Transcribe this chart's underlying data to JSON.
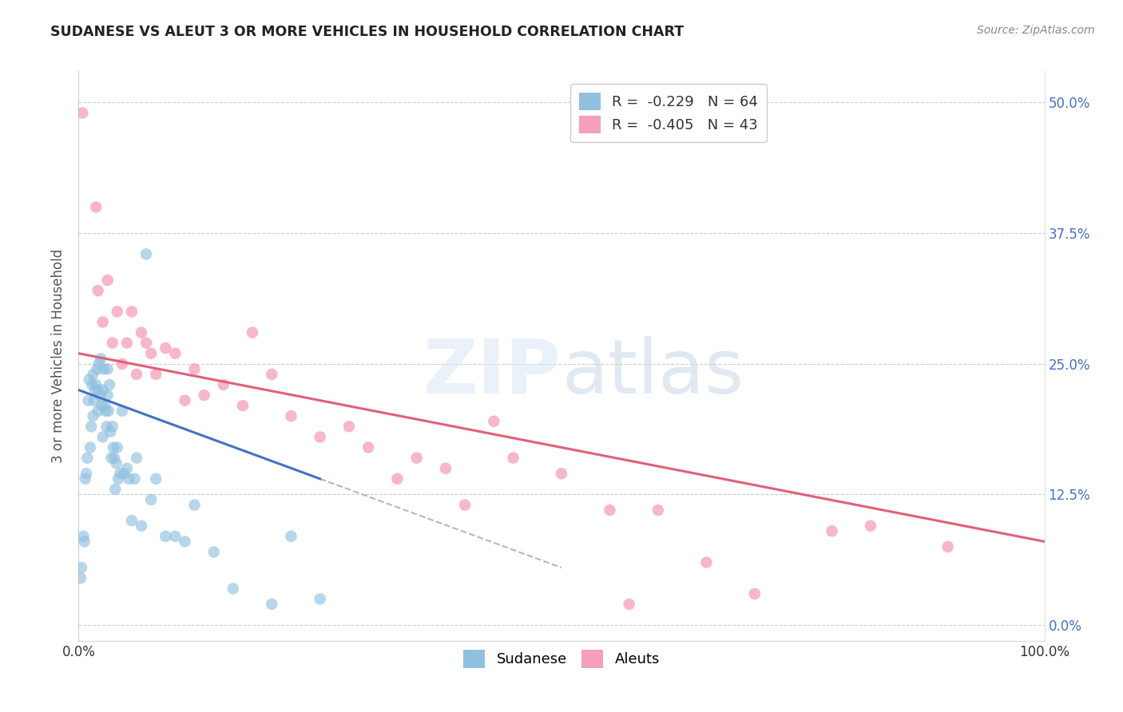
{
  "title": "SUDANESE VS ALEUT 3 OR MORE VEHICLES IN HOUSEHOLD CORRELATION CHART",
  "source": "Source: ZipAtlas.com",
  "ylabel": "3 or more Vehicles in Household",
  "ytick_values": [
    0.0,
    12.5,
    25.0,
    37.5,
    50.0
  ],
  "xlim": [
    0.0,
    100.0
  ],
  "ylim": [
    -1.5,
    53.0
  ],
  "r_sudanese": -0.229,
  "n_sudanese": 64,
  "r_aleut": -0.405,
  "n_aleut": 43,
  "sudanese_color": "#92c0e0",
  "aleut_color": "#f4a0b8",
  "sudanese_line_color": "#4472c4",
  "aleut_line_color": "#e0607a",
  "sudanese_x": [
    0.2,
    0.3,
    0.5,
    0.6,
    0.7,
    0.8,
    0.9,
    1.0,
    1.1,
    1.2,
    1.3,
    1.4,
    1.5,
    1.5,
    1.6,
    1.7,
    1.8,
    1.9,
    2.0,
    2.0,
    2.1,
    2.2,
    2.3,
    2.4,
    2.5,
    2.5,
    2.6,
    2.7,
    2.8,
    2.9,
    3.0,
    3.0,
    3.1,
    3.2,
    3.3,
    3.4,
    3.5,
    3.6,
    3.7,
    3.8,
    3.9,
    4.0,
    4.1,
    4.3,
    4.5,
    4.7,
    5.0,
    5.2,
    5.5,
    5.8,
    6.0,
    6.5,
    7.0,
    7.5,
    8.0,
    9.0,
    10.0,
    11.0,
    12.0,
    14.0,
    16.0,
    20.0,
    22.0,
    25.0
  ],
  "sudanese_y": [
    4.5,
    5.5,
    8.5,
    8.0,
    14.0,
    14.5,
    16.0,
    21.5,
    23.5,
    17.0,
    19.0,
    23.0,
    24.0,
    20.0,
    21.5,
    22.5,
    23.0,
    24.5,
    22.5,
    20.5,
    25.0,
    22.0,
    25.5,
    21.0,
    22.5,
    18.0,
    24.5,
    21.0,
    20.5,
    19.0,
    24.5,
    22.0,
    20.5,
    23.0,
    18.5,
    16.0,
    19.0,
    17.0,
    16.0,
    13.0,
    15.5,
    17.0,
    14.0,
    14.5,
    20.5,
    14.5,
    15.0,
    14.0,
    10.0,
    14.0,
    16.0,
    9.5,
    35.5,
    12.0,
    14.0,
    8.5,
    8.5,
    8.0,
    11.5,
    7.0,
    3.5,
    2.0,
    8.5,
    2.5
  ],
  "aleut_x": [
    0.4,
    1.8,
    2.0,
    2.5,
    3.0,
    3.5,
    4.0,
    4.5,
    5.0,
    5.5,
    6.0,
    6.5,
    7.0,
    7.5,
    8.0,
    9.0,
    10.0,
    11.0,
    12.0,
    13.0,
    15.0,
    17.0,
    18.0,
    20.0,
    22.0,
    25.0,
    28.0,
    30.0,
    33.0,
    35.0,
    38.0,
    40.0,
    43.0,
    45.0,
    50.0,
    55.0,
    57.0,
    60.0,
    65.0,
    70.0,
    78.0,
    82.0,
    90.0
  ],
  "aleut_y": [
    49.0,
    40.0,
    32.0,
    29.0,
    33.0,
    27.0,
    30.0,
    25.0,
    27.0,
    30.0,
    24.0,
    28.0,
    27.0,
    26.0,
    24.0,
    26.5,
    26.0,
    21.5,
    24.5,
    22.0,
    23.0,
    21.0,
    28.0,
    24.0,
    20.0,
    18.0,
    19.0,
    17.0,
    14.0,
    16.0,
    15.0,
    11.5,
    19.5,
    16.0,
    14.5,
    11.0,
    2.0,
    11.0,
    6.0,
    3.0,
    9.0,
    9.5,
    7.5
  ],
  "aleut_trendline_x0": 0.0,
  "aleut_trendline_y0": 26.0,
  "aleut_trendline_x1": 100.0,
  "aleut_trendline_y1": 8.0,
  "sudanese_trendline_x0": 0.0,
  "sudanese_trendline_y0": 22.5,
  "sudanese_trendline_x1": 25.0,
  "sudanese_trendline_y1": 14.0,
  "sudanese_dash_x0": 25.0,
  "sudanese_dash_y0": 14.0,
  "sudanese_dash_x1": 50.0,
  "sudanese_dash_y1": 5.5
}
